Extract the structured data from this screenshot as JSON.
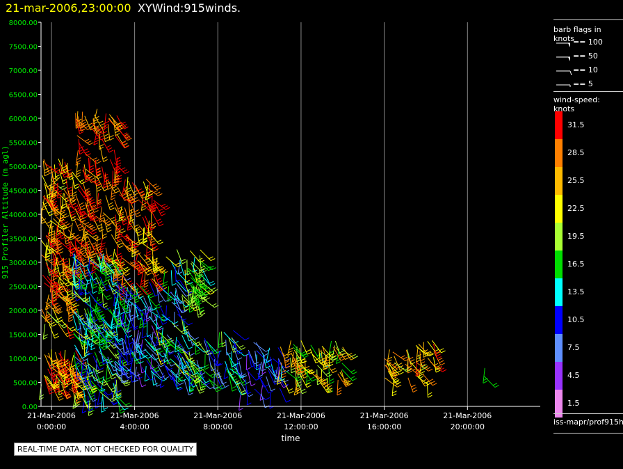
{
  "header": {
    "datetime": "21-mar-2006,23:00:00",
    "title": "XYWind:915winds."
  },
  "qc_note": "REAL-TIME DATA, NOT CHECKED FOR QUALITY",
  "source_label": "iss-mapr/prof915h",
  "legend": {
    "barb_title": "barb flags in knots",
    "barb_entries": [
      "== 100",
      "== 50",
      "== 10",
      "== 5"
    ],
    "speed_title": "wind-speed: knots",
    "speed_bins": [
      {
        "label": "31.5",
        "color": "#ff0000"
      },
      {
        "label": "28.5",
        "color": "#ff8000"
      },
      {
        "label": "25.5",
        "color": "#ffbb00"
      },
      {
        "label": "22.5",
        "color": "#ffff00"
      },
      {
        "label": "19.5",
        "color": "#aaff33"
      },
      {
        "label": "16.5",
        "color": "#00dd00"
      },
      {
        "label": "13.5",
        "color": "#00ffff"
      },
      {
        "label": "10.5",
        "color": "#0000ff"
      },
      {
        "label": "7.5",
        "color": "#5f8fff"
      },
      {
        "label": "4.5",
        "color": "#9933ff"
      },
      {
        "label": "1.5",
        "color": "#ee88ee"
      }
    ]
  },
  "chart_data": {
    "type": "scatter",
    "title": "21-mar-2006,23:00:00 XYWind:915winds.",
    "xlabel": "time",
    "ylabel": "915 Profiler Altitude (m agl)",
    "ylim": [
      0,
      8000
    ],
    "yticks": [
      "0.00",
      "500.00",
      "1000.00",
      "1500.00",
      "2000.00",
      "2500.00",
      "3000.00",
      "3500.00",
      "4000.00",
      "4500.00",
      "5000.00",
      "5500.00",
      "6000.00",
      "6500.00",
      "7000.00",
      "7500.00",
      "8000.00"
    ],
    "xlim_hours": [
      -0.5,
      23.5
    ],
    "xticks": [
      {
        "hour": 0,
        "line1": "21-Mar-2006",
        "line2": "0:00:00"
      },
      {
        "hour": 4,
        "line1": "21-Mar-2006",
        "line2": "4:00:00"
      },
      {
        "hour": 8,
        "line1": "21-Mar-2006",
        "line2": "8:00:00"
      },
      {
        "hour": 12,
        "line1": "21-Mar-2006",
        "line2": "12:00:00"
      },
      {
        "hour": 16,
        "line1": "21-Mar-2006",
        "line2": "16:00:00"
      },
      {
        "hour": 20,
        "line1": "21-Mar-2006",
        "line2": "20:00:00"
      }
    ],
    "grid": "vertical",
    "wind_clusters": [
      {
        "t_start": -0.5,
        "t_end": 1.0,
        "alt_min": 1700,
        "alt_max": 5200,
        "speed_min": 20,
        "speed_max": 34,
        "count": 140
      },
      {
        "t_start": -0.5,
        "t_end": 1.2,
        "alt_min": 300,
        "alt_max": 1200,
        "speed_min": 20,
        "speed_max": 33,
        "count": 60
      },
      {
        "t_start": 1.0,
        "t_end": 3.2,
        "alt_min": 3000,
        "alt_max": 6200,
        "speed_min": 24,
        "speed_max": 34,
        "count": 130
      },
      {
        "t_start": 1.0,
        "t_end": 3.2,
        "alt_min": 1500,
        "alt_max": 3200,
        "speed_min": 8,
        "speed_max": 20,
        "count": 130
      },
      {
        "t_start": 1.0,
        "t_end": 3.2,
        "alt_min": 100,
        "alt_max": 1600,
        "speed_min": 8,
        "speed_max": 22,
        "count": 90
      },
      {
        "t_start": 3.0,
        "t_end": 5.0,
        "alt_min": 2500,
        "alt_max": 4800,
        "speed_min": 22,
        "speed_max": 33,
        "count": 90
      },
      {
        "t_start": 3.0,
        "t_end": 5.0,
        "alt_min": 700,
        "alt_max": 2600,
        "speed_min": 5,
        "speed_max": 17,
        "count": 110
      },
      {
        "t_start": 5.0,
        "t_end": 6.5,
        "alt_min": 600,
        "alt_max": 3300,
        "speed_min": 6,
        "speed_max": 24,
        "count": 80
      },
      {
        "t_start": 6.5,
        "t_end": 7.3,
        "alt_min": 2100,
        "alt_max": 3300,
        "speed_min": 14,
        "speed_max": 22,
        "count": 40
      },
      {
        "t_start": 6.0,
        "t_end": 9.0,
        "alt_min": 500,
        "alt_max": 1600,
        "speed_min": 6,
        "speed_max": 20,
        "count": 80
      },
      {
        "t_start": 9.0,
        "t_end": 11.0,
        "alt_min": 200,
        "alt_max": 1400,
        "speed_min": 4,
        "speed_max": 14,
        "count": 45
      },
      {
        "t_start": 11.0,
        "t_end": 14.0,
        "alt_min": 500,
        "alt_max": 1400,
        "speed_min": 14,
        "speed_max": 29,
        "count": 70
      },
      {
        "t_start": 16.0,
        "t_end": 16.5,
        "alt_min": 500,
        "alt_max": 1200,
        "speed_min": 20,
        "speed_max": 30,
        "count": 14
      },
      {
        "t_start": 17.0,
        "t_end": 18.4,
        "alt_min": 500,
        "alt_max": 1400,
        "speed_min": 20,
        "speed_max": 32,
        "count": 28
      },
      {
        "t_start": 20.8,
        "t_end": 21.0,
        "alt_min": 500,
        "alt_max": 800,
        "speed_min": 16,
        "speed_max": 19,
        "count": 2
      }
    ]
  }
}
